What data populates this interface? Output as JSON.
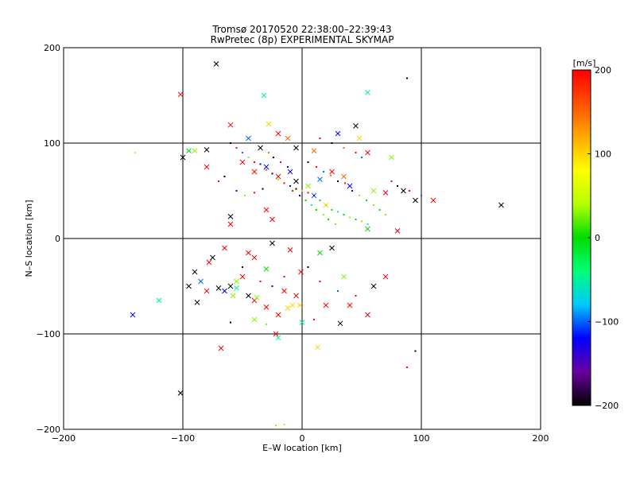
{
  "chart_data": {
    "type": "scatter",
    "title": "Tromsø 20170520 22:38:00–22:39:43",
    "subtitle": "RwPretec (8p) EXPERIMENTAL SKYMAP",
    "xlabel": "E–W location [km]",
    "ylabel": "N–S location [km]",
    "xlim": [
      -200,
      200
    ],
    "ylim": [
      -200,
      200
    ],
    "xticks": [
      -200,
      -100,
      0,
      100,
      200
    ],
    "yticks": [
      -200,
      -100,
      0,
      100,
      200
    ],
    "xtick_labels": [
      "−200",
      "−100",
      "0",
      "100",
      "200"
    ],
    "ytick_labels": [
      "−200",
      "−100",
      "0",
      "100",
      "200"
    ],
    "grid": true,
    "colorbar": {
      "label": "[m/s]",
      "range": [
        -200,
        200
      ],
      "ticks": [
        200,
        100,
        0,
        -100,
        -200
      ],
      "tick_labels": [
        "200",
        "100",
        "0",
        "−100",
        "−200"
      ],
      "colors": [
        "#000000",
        "#6a00a0",
        "#0000ff",
        "#00c8ff",
        "#00ff78",
        "#00dc00",
        "#b4ff00",
        "#ffff00",
        "#ffaa00",
        "#ff5000",
        "#ff0000"
      ]
    },
    "series": [
      {
        "marker": "x",
        "points": [
          [
            -72,
            183,
            -200
          ],
          [
            -102,
            151,
            200
          ],
          [
            -32,
            150,
            -50
          ],
          [
            55,
            153,
            -50
          ],
          [
            -100,
            85,
            -200
          ],
          [
            -95,
            92,
            0
          ],
          [
            -90,
            92,
            30
          ],
          [
            -80,
            93,
            -200
          ],
          [
            -60,
            119,
            200
          ],
          [
            -20,
            110,
            200
          ],
          [
            -12,
            105,
            150
          ],
          [
            -28,
            120,
            100
          ],
          [
            -45,
            105,
            -100
          ],
          [
            -35,
            95,
            -200
          ],
          [
            -5,
            95,
            -200
          ],
          [
            10,
            92,
            150
          ],
          [
            30,
            110,
            -120
          ],
          [
            45,
            118,
            -200
          ],
          [
            48,
            105,
            100
          ],
          [
            55,
            90,
            200
          ],
          [
            75,
            85,
            30
          ],
          [
            -50,
            80,
            200
          ],
          [
            -40,
            70,
            200
          ],
          [
            -30,
            75,
            -120
          ],
          [
            -20,
            65,
            200
          ],
          [
            -10,
            70,
            -120
          ],
          [
            -5,
            60,
            -200
          ],
          [
            5,
            55,
            30
          ],
          [
            15,
            62,
            -100
          ],
          [
            25,
            70,
            200
          ],
          [
            35,
            65,
            150
          ],
          [
            40,
            55,
            -120
          ],
          [
            60,
            50,
            30
          ],
          [
            70,
            48,
            200
          ],
          [
            85,
            50,
            -200
          ],
          [
            95,
            40,
            -200
          ],
          [
            110,
            40,
            200
          ],
          [
            167,
            35,
            -200
          ],
          [
            -80,
            75,
            200
          ],
          [
            -60,
            23,
            -200
          ],
          [
            -60,
            15,
            200
          ],
          [
            -30,
            30,
            200
          ],
          [
            -25,
            20,
            200
          ],
          [
            10,
            45,
            -100
          ],
          [
            20,
            35,
            100
          ],
          [
            55,
            10,
            0
          ],
          [
            80,
            8,
            200
          ],
          [
            -65,
            -10,
            200
          ],
          [
            -45,
            -15,
            200
          ],
          [
            -40,
            -20,
            200
          ],
          [
            -25,
            -5,
            -200
          ],
          [
            -10,
            -12,
            200
          ],
          [
            15,
            -15,
            0
          ],
          [
            25,
            -10,
            -200
          ],
          [
            -75,
            -20,
            -200
          ],
          [
            -78,
            -25,
            200
          ],
          [
            -90,
            -35,
            -200
          ],
          [
            -85,
            -45,
            -100
          ],
          [
            -95,
            -50,
            -200
          ],
          [
            -80,
            -55,
            200
          ],
          [
            -70,
            -52,
            -200
          ],
          [
            -60,
            -50,
            -200
          ],
          [
            -55,
            -45,
            30
          ],
          [
            -50,
            -40,
            200
          ],
          [
            -45,
            -60,
            -200
          ],
          [
            -40,
            -65,
            200
          ],
          [
            -38,
            -62,
            30
          ],
          [
            -30,
            -72,
            200
          ],
          [
            -20,
            -80,
            200
          ],
          [
            -15,
            -55,
            200
          ],
          [
            -5,
            -60,
            200
          ],
          [
            -8,
            -70,
            100
          ],
          [
            -12,
            -73,
            100
          ],
          [
            -2,
            -70,
            100
          ],
          [
            20,
            -70,
            200
          ],
          [
            35,
            -40,
            30
          ],
          [
            40,
            -70,
            200
          ],
          [
            55,
            -80,
            200
          ],
          [
            60,
            -50,
            -200
          ],
          [
            70,
            -40,
            200
          ],
          [
            -142,
            -80,
            -120
          ],
          [
            -120,
            -65,
            -50
          ],
          [
            -88,
            -67,
            -200
          ],
          [
            -40,
            -85,
            30
          ],
          [
            -22,
            -100,
            200
          ],
          [
            -20,
            -104,
            -50
          ],
          [
            0,
            -88,
            -50
          ],
          [
            13,
            -114,
            100
          ],
          [
            -68,
            -115,
            200
          ],
          [
            32,
            -89,
            -200
          ],
          [
            -102,
            -162,
            -200
          ],
          [
            -65,
            -55,
            -120
          ],
          [
            -55,
            -52,
            -50
          ],
          [
            -58,
            -60,
            30
          ],
          [
            -1,
            -35,
            200
          ],
          [
            -30,
            -32,
            0
          ]
        ]
      },
      {
        "marker": "dot",
        "points": [
          [
            -60,
            100,
            -200
          ],
          [
            -55,
            95,
            200
          ],
          [
            -50,
            90,
            -100
          ],
          [
            -45,
            85,
            30
          ],
          [
            -40,
            80,
            200
          ],
          [
            -35,
            78,
            -120
          ],
          [
            -30,
            72,
            150
          ],
          [
            -25,
            68,
            -200
          ],
          [
            -20,
            62,
            30
          ],
          [
            -15,
            58,
            200
          ],
          [
            -10,
            55,
            -120
          ],
          [
            -5,
            52,
            -200
          ],
          [
            0,
            50,
            100
          ],
          [
            5,
            48,
            200
          ],
          [
            10,
            45,
            -120
          ],
          [
            15,
            40,
            0
          ],
          [
            20,
            35,
            30
          ],
          [
            25,
            30,
            0
          ],
          [
            30,
            28,
            -50
          ],
          [
            35,
            25,
            0
          ],
          [
            40,
            22,
            30
          ],
          [
            45,
            20,
            0
          ],
          [
            50,
            18,
            30
          ],
          [
            55,
            15,
            -50
          ],
          [
            12,
            30,
            0
          ],
          [
            18,
            25,
            30
          ],
          [
            22,
            20,
            0
          ],
          [
            28,
            15,
            30
          ],
          [
            8,
            35,
            -50
          ],
          [
            3,
            40,
            0
          ],
          [
            -2,
            45,
            -120
          ],
          [
            -8,
            50,
            200
          ],
          [
            -12,
            75,
            -120
          ],
          [
            -18,
            80,
            200
          ],
          [
            -24,
            85,
            -200
          ],
          [
            -28,
            90,
            150
          ],
          [
            5,
            80,
            -200
          ],
          [
            12,
            75,
            200
          ],
          [
            18,
            70,
            -100
          ],
          [
            24,
            66,
            150
          ],
          [
            30,
            60,
            -200
          ],
          [
            36,
            58,
            200
          ],
          [
            42,
            50,
            -120
          ],
          [
            48,
            45,
            30
          ],
          [
            54,
            40,
            0
          ],
          [
            60,
            35,
            30
          ],
          [
            65,
            30,
            0
          ],
          [
            70,
            25,
            30
          ],
          [
            75,
            60,
            200
          ],
          [
            80,
            55,
            -200
          ],
          [
            90,
            50,
            200
          ],
          [
            100,
            45,
            -100
          ],
          [
            45,
            90,
            200
          ],
          [
            50,
            85,
            -100
          ],
          [
            35,
            95,
            150
          ],
          [
            25,
            100,
            -200
          ],
          [
            15,
            105,
            200
          ],
          [
            -65,
            65,
            -200
          ],
          [
            -70,
            60,
            200
          ],
          [
            -55,
            50,
            -120
          ],
          [
            -48,
            45,
            30
          ],
          [
            -40,
            48,
            200
          ],
          [
            -33,
            52,
            -200
          ],
          [
            88,
            168,
            -200
          ],
          [
            -50,
            -30,
            -200
          ],
          [
            -35,
            -45,
            200
          ],
          [
            -25,
            -50,
            -120
          ],
          [
            -15,
            -40,
            200
          ],
          [
            5,
            -30,
            -200
          ],
          [
            15,
            -45,
            200
          ],
          [
            30,
            -55,
            -100
          ],
          [
            45,
            -60,
            200
          ],
          [
            -60,
            -88,
            -200
          ],
          [
            -30,
            -90,
            30
          ],
          [
            10,
            -85,
            200
          ],
          [
            -15,
            -195,
            100
          ],
          [
            -22,
            -196,
            30
          ],
          [
            95,
            -118,
            -200
          ],
          [
            88,
            -135,
            200
          ],
          [
            -140,
            90,
            100
          ]
        ]
      }
    ]
  }
}
